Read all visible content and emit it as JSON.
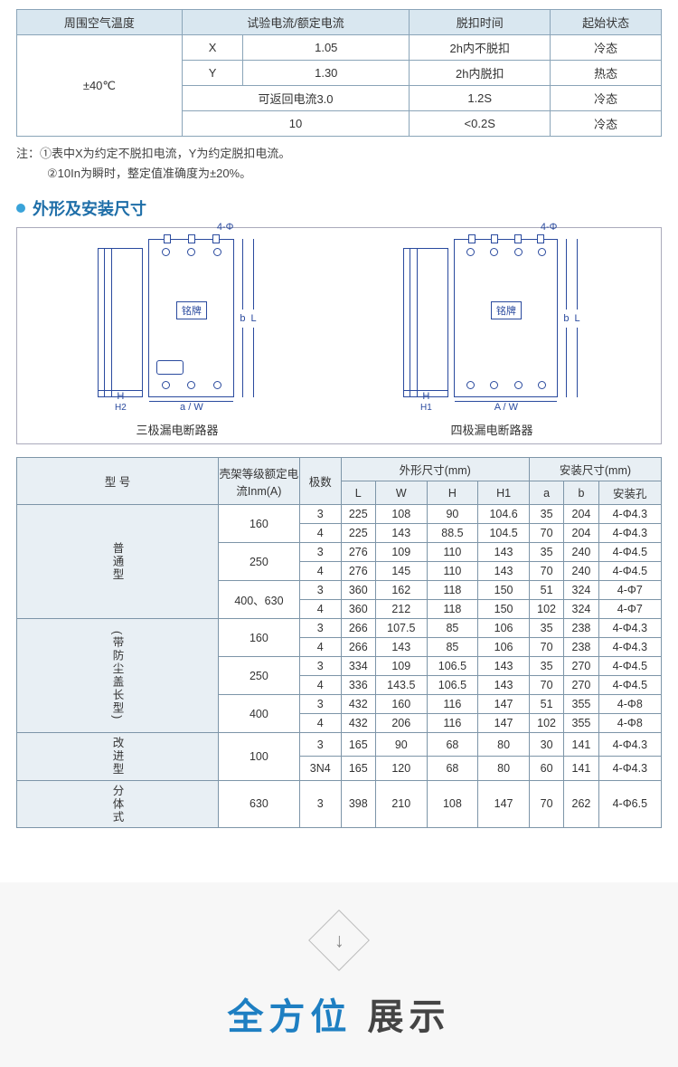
{
  "table1": {
    "headers": [
      "周围空气温度",
      "试验电流/额定电流",
      "脱扣时间",
      "起始状态"
    ],
    "colA": "±40℃",
    "rows": [
      [
        "X",
        "1.05",
        "2h内不脱扣",
        "冷态"
      ],
      [
        "Y",
        "1.30",
        "2h内脱扣",
        "热态"
      ],
      [
        "可返回电流3.0",
        "",
        "1.2S",
        "冷态"
      ],
      [
        "10",
        "",
        "<0.2S",
        "冷态"
      ]
    ]
  },
  "notes": {
    "line1": "注：①表中X为约定不脱扣电流，Y为约定脱扣电流。",
    "line2": "②10In为瞬时，整定值准确度为±20%。"
  },
  "section_heading": "外形及安装尺寸",
  "diagrams": {
    "phi": "4-Φ",
    "plate": "铭牌",
    "dim_b": "b",
    "dim_L": "L",
    "dim_a": "a",
    "dim_W": "W",
    "dim_A": "A",
    "dim_H": "H",
    "dim_H1": "H1",
    "dim_H2": "H2",
    "label_left": "三极漏电断路器",
    "label_right": "四极漏电断路器"
  },
  "table2": {
    "h_model": "型 号",
    "h_frame": "壳架等级额定电流Inm(A)",
    "h_poles": "极数",
    "h_outer": "外形尺寸(mm)",
    "h_mount": "安装尺寸(mm)",
    "sub_outer": [
      "L",
      "W",
      "H",
      "H1"
    ],
    "sub_mount": [
      "a",
      "b",
      "安装孔"
    ],
    "groups": [
      {
        "name": "普通型",
        "blocks": [
          {
            "frame": "160",
            "rows": [
              [
                "3",
                "225",
                "108",
                "90",
                "104.6",
                "35",
                "204",
                "4-Φ4.3"
              ],
              [
                "4",
                "225",
                "143",
                "88.5",
                "104.5",
                "70",
                "204",
                "4-Φ4.3"
              ]
            ]
          },
          {
            "frame": "250",
            "rows": [
              [
                "3",
                "276",
                "109",
                "110",
                "143",
                "35",
                "240",
                "4-Φ4.5"
              ],
              [
                "4",
                "276",
                "145",
                "110",
                "143",
                "70",
                "240",
                "4-Φ4.5"
              ]
            ]
          },
          {
            "frame": "400、630",
            "rows": [
              [
                "3",
                "360",
                "162",
                "118",
                "150",
                "51",
                "324",
                "4-Φ7"
              ],
              [
                "4",
                "360",
                "212",
                "118",
                "150",
                "102",
                "324",
                "4-Φ7"
              ]
            ]
          }
        ]
      },
      {
        "name": "(带防尘盖长型)",
        "blocks": [
          {
            "frame": "160",
            "rows": [
              [
                "3",
                "266",
                "107.5",
                "85",
                "106",
                "35",
                "238",
                "4-Φ4.3"
              ],
              [
                "4",
                "266",
                "143",
                "85",
                "106",
                "70",
                "238",
                "4-Φ4.3"
              ]
            ]
          },
          {
            "frame": "250",
            "rows": [
              [
                "3",
                "334",
                "109",
                "106.5",
                "143",
                "35",
                "270",
                "4-Φ4.5"
              ],
              [
                "4",
                "336",
                "143.5",
                "106.5",
                "143",
                "70",
                "270",
                "4-Φ4.5"
              ]
            ]
          },
          {
            "frame": "400",
            "rows": [
              [
                "3",
                "432",
                "160",
                "116",
                "147",
                "51",
                "355",
                "4-Φ8"
              ],
              [
                "4",
                "432",
                "206",
                "116",
                "147",
                "102",
                "355",
                "4-Φ8"
              ]
            ]
          }
        ]
      },
      {
        "name": "改进型",
        "blocks": [
          {
            "frame": "100",
            "rows": [
              [
                "3",
                "165",
                "90",
                "68",
                "80",
                "30",
                "141",
                "4-Φ4.3"
              ],
              [
                "3N4",
                "165",
                "120",
                "68",
                "80",
                "60",
                "141",
                "4-Φ4.3"
              ]
            ]
          }
        ]
      },
      {
        "name": "分体式",
        "blocks": [
          {
            "frame": "630",
            "rows": [
              [
                "3",
                "398",
                "210",
                "108",
                "147",
                "70",
                "262",
                "4-Φ6.5"
              ]
            ]
          }
        ]
      }
    ]
  },
  "banner": {
    "arrow": "↓",
    "accent": "全方位",
    "rest": " 展示"
  },
  "colors": {
    "heading": "#1e6ea8",
    "bullet": "#3aa3d9",
    "t1_border": "#8aa4b8",
    "t1_head_bg": "#d9e7f0",
    "t2_border": "#7d95a8",
    "t2_head_bg": "#e8eff4",
    "diagram_line": "#2a4a9e",
    "banner_bg": "#f7f7f7",
    "accent_text": "#1e7fc2"
  }
}
